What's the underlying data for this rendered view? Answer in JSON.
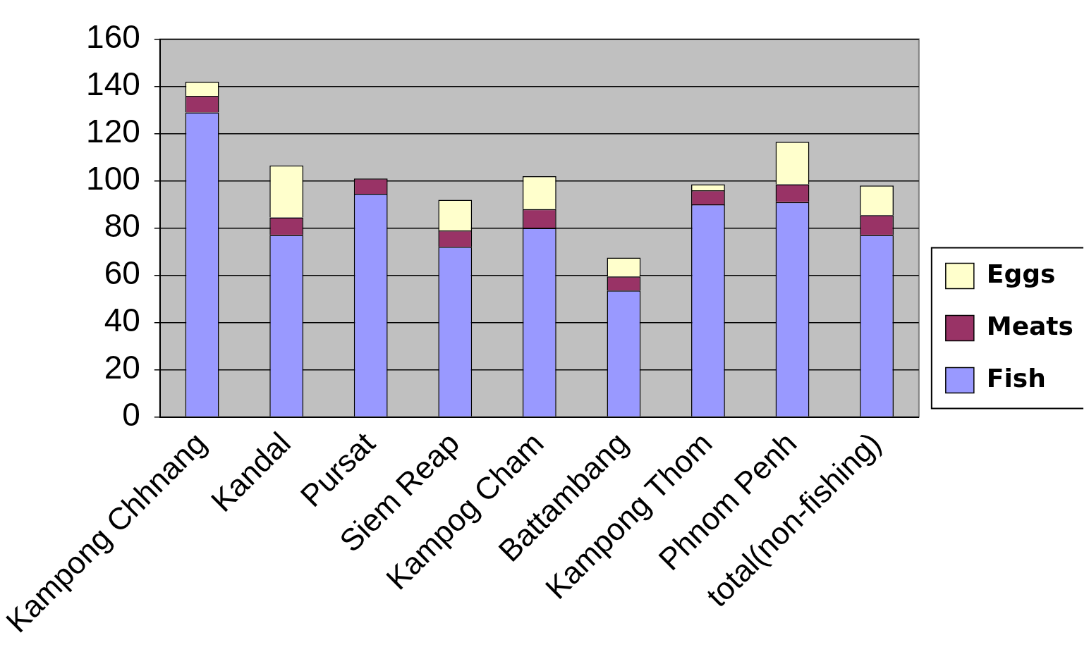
{
  "chart_data": {
    "type": "bar",
    "stacked": true,
    "categories": [
      "Kampong Chhnang",
      "Kandal",
      "Pursat",
      "Siem Reap",
      "Kampog Cham",
      "Battambang",
      "Kampong Thom",
      "Phnom Penh",
      "total(non-fishing)"
    ],
    "series": [
      {
        "name": "Fish",
        "color": "#9999ff",
        "values": [
          129,
          77,
          94.5,
          72,
          80,
          53.5,
          90,
          91,
          77
        ]
      },
      {
        "name": "Meats",
        "color": "#993366",
        "values": [
          7,
          7.5,
          6.5,
          7,
          8,
          6,
          6,
          7.5,
          8.5
        ]
      },
      {
        "name": "Eggs",
        "color": "#ffffcc",
        "values": [
          6,
          22,
          0,
          13,
          14,
          8,
          2.5,
          18,
          12.5
        ]
      }
    ],
    "ylim": [
      0,
      160
    ],
    "yticks": [
      0,
      20,
      40,
      60,
      80,
      100,
      120,
      140,
      160
    ],
    "grid": "y",
    "legend": "right"
  }
}
